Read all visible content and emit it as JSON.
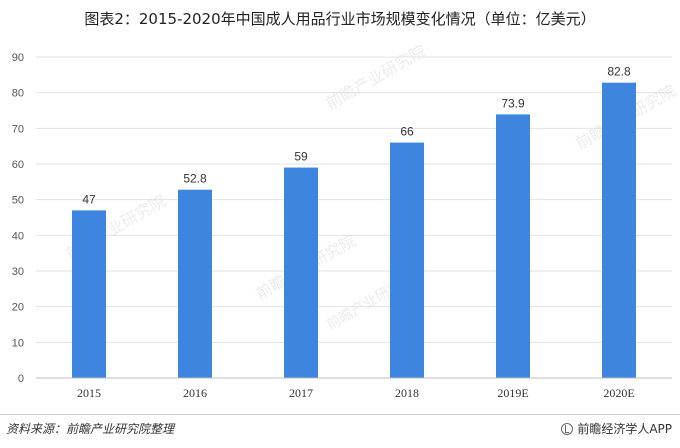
{
  "title": "图表2：2015-2020年中国成人用品行业市场规模变化情况（单位：亿美元）",
  "source": "资料来源：前瞻产业研究院整理",
  "brand": "前瞻经济学人APP",
  "watermark": "前瞻产业研究院",
  "colors": {
    "bar": "#3e85e0",
    "grid": "#e2e2e2",
    "axis": "#bfbfbf"
  },
  "chart_data": {
    "type": "bar",
    "categories": [
      "2015",
      "2016",
      "2017",
      "2018",
      "2019E",
      "2020E"
    ],
    "values": [
      47,
      52.8,
      59,
      66,
      73.9,
      82.8
    ],
    "data_labels": [
      "47",
      "52.8",
      "59",
      "66",
      "73.9",
      "82.8"
    ],
    "ylim": [
      0,
      90
    ],
    "yticks": [
      0,
      10,
      20,
      30,
      40,
      50,
      60,
      70,
      80,
      90
    ],
    "grid": true,
    "xlabel": "",
    "ylabel": ""
  }
}
